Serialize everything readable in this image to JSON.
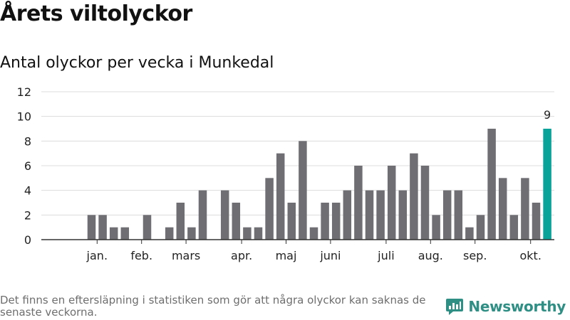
{
  "header": {
    "title": "Årets viltolyckor",
    "subtitle": "Antal olyckor per vecka i Munkedal"
  },
  "footer": {
    "note": "Det finns en eftersläpning i statistiken som gör att några olyckor kan saknas de senaste veckorna.",
    "brand": "Newsworthy"
  },
  "colors": {
    "bar": "#6f6e73",
    "highlight": "#0aa39a",
    "grid": "#dcdcdc",
    "axis": "#333333",
    "brand": "#2f8f85"
  },
  "chart_data": {
    "type": "bar",
    "title": "Årets viltolyckor",
    "subtitle": "Antal olyckor per vecka i Munkedal",
    "xlabel": "",
    "ylabel": "",
    "ylim": [
      0,
      12
    ],
    "yticks": [
      0,
      2,
      4,
      6,
      8,
      10,
      12
    ],
    "grid": true,
    "weeks": [
      1,
      2,
      3,
      4,
      5,
      6,
      7,
      8,
      9,
      10,
      11,
      12,
      13,
      14,
      15,
      16,
      17,
      18,
      19,
      20,
      21,
      22,
      23,
      24,
      25,
      26,
      27,
      28,
      29,
      30,
      31,
      32,
      33,
      34,
      35,
      36,
      37,
      38,
      39,
      40,
      41,
      42,
      43,
      44,
      45
    ],
    "values": [
      0,
      0,
      2,
      2,
      1,
      1,
      0,
      2,
      0,
      1,
      3,
      1,
      4,
      0,
      4,
      3,
      1,
      1,
      5,
      7,
      3,
      8,
      1,
      3,
      3,
      4,
      6,
      4,
      4,
      6,
      4,
      7,
      6,
      2,
      4,
      4,
      1,
      2,
      9,
      5,
      2,
      5,
      3,
      9,
      null
    ],
    "highlight_index": 43,
    "annotation": {
      "index": 43,
      "label": "9"
    },
    "month_ticks": [
      {
        "label": "jan.",
        "week": 3.5
      },
      {
        "label": "feb.",
        "week": 7.5
      },
      {
        "label": "mars",
        "week": 11.5
      },
      {
        "label": "apr.",
        "week": 16.5
      },
      {
        "label": "maj",
        "week": 20.5
      },
      {
        "label": "juni",
        "week": 24.5
      },
      {
        "label": "juli",
        "week": 29.5
      },
      {
        "label": "aug.",
        "week": 33.5
      },
      {
        "label": "sep.",
        "week": 37.5
      },
      {
        "label": "okt.",
        "week": 42.5
      }
    ]
  }
}
